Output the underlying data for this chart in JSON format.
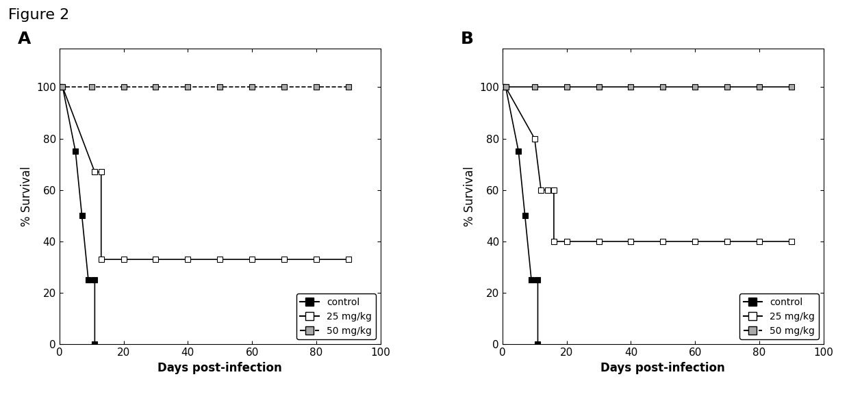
{
  "figure_title": "Figure 2",
  "panel_A": {
    "label": "A",
    "control": {
      "x": [
        0,
        1,
        5,
        7,
        9,
        11,
        11
      ],
      "y": [
        100,
        100,
        75,
        50,
        25,
        25,
        0
      ],
      "marker": "filled_square",
      "color": "#000000",
      "linestyle": "solid"
    },
    "mg25": {
      "x": [
        0,
        1,
        11,
        13,
        13,
        20,
        30,
        40,
        50,
        60,
        70,
        80,
        90
      ],
      "y": [
        100,
        100,
        67,
        67,
        33,
        33,
        33,
        33,
        33,
        33,
        33,
        33,
        33
      ],
      "marker": "open_square",
      "color": "#000000",
      "linestyle": "solid"
    },
    "mg50": {
      "x": [
        0,
        1,
        10,
        20,
        30,
        40,
        50,
        60,
        70,
        80,
        90
      ],
      "y": [
        100,
        100,
        100,
        100,
        100,
        100,
        100,
        100,
        100,
        100,
        100
      ],
      "marker": "hatched_square",
      "color": "#000000",
      "linestyle": "dashed"
    },
    "xlabel": "Days post-infection",
    "ylabel": "% Survival",
    "xlim": [
      0,
      100
    ],
    "ylim": [
      0,
      115
    ],
    "yticks": [
      0,
      20,
      40,
      60,
      80,
      100
    ],
    "xticks": [
      0,
      20,
      40,
      60,
      80,
      100
    ]
  },
  "panel_B": {
    "label": "B",
    "control": {
      "x": [
        0,
        1,
        5,
        7,
        9,
        11,
        11
      ],
      "y": [
        100,
        100,
        75,
        50,
        25,
        25,
        0
      ],
      "marker": "filled_square",
      "color": "#000000",
      "linestyle": "solid"
    },
    "mg25": {
      "x": [
        0,
        1,
        10,
        12,
        14,
        16,
        16,
        20,
        30,
        40,
        50,
        60,
        70,
        80,
        90
      ],
      "y": [
        100,
        100,
        80,
        60,
        60,
        60,
        40,
        40,
        40,
        40,
        40,
        40,
        40,
        40,
        40
      ],
      "marker": "open_square",
      "color": "#000000",
      "linestyle": "solid"
    },
    "mg50": {
      "x": [
        0,
        1,
        10,
        20,
        30,
        40,
        50,
        60,
        70,
        80,
        90
      ],
      "y": [
        100,
        100,
        100,
        100,
        100,
        100,
        100,
        100,
        100,
        100,
        100
      ],
      "marker": "hatched_square",
      "color": "#000000",
      "linestyle": "solid"
    },
    "xlabel": "Days post-infection",
    "ylabel": "% Survival",
    "xlim": [
      0,
      100
    ],
    "ylim": [
      0,
      115
    ],
    "yticks": [
      0,
      20,
      40,
      60,
      80,
      100
    ],
    "xticks": [
      0,
      20,
      40,
      60,
      80,
      100
    ]
  },
  "background_color": "#ffffff",
  "text_color": "#000000",
  "figure_title_fontsize": 16,
  "panel_label_fontsize": 18,
  "axis_label_fontsize": 12,
  "tick_fontsize": 11,
  "legend_fontsize": 10,
  "linewidth": 1.2,
  "markersize": 6
}
